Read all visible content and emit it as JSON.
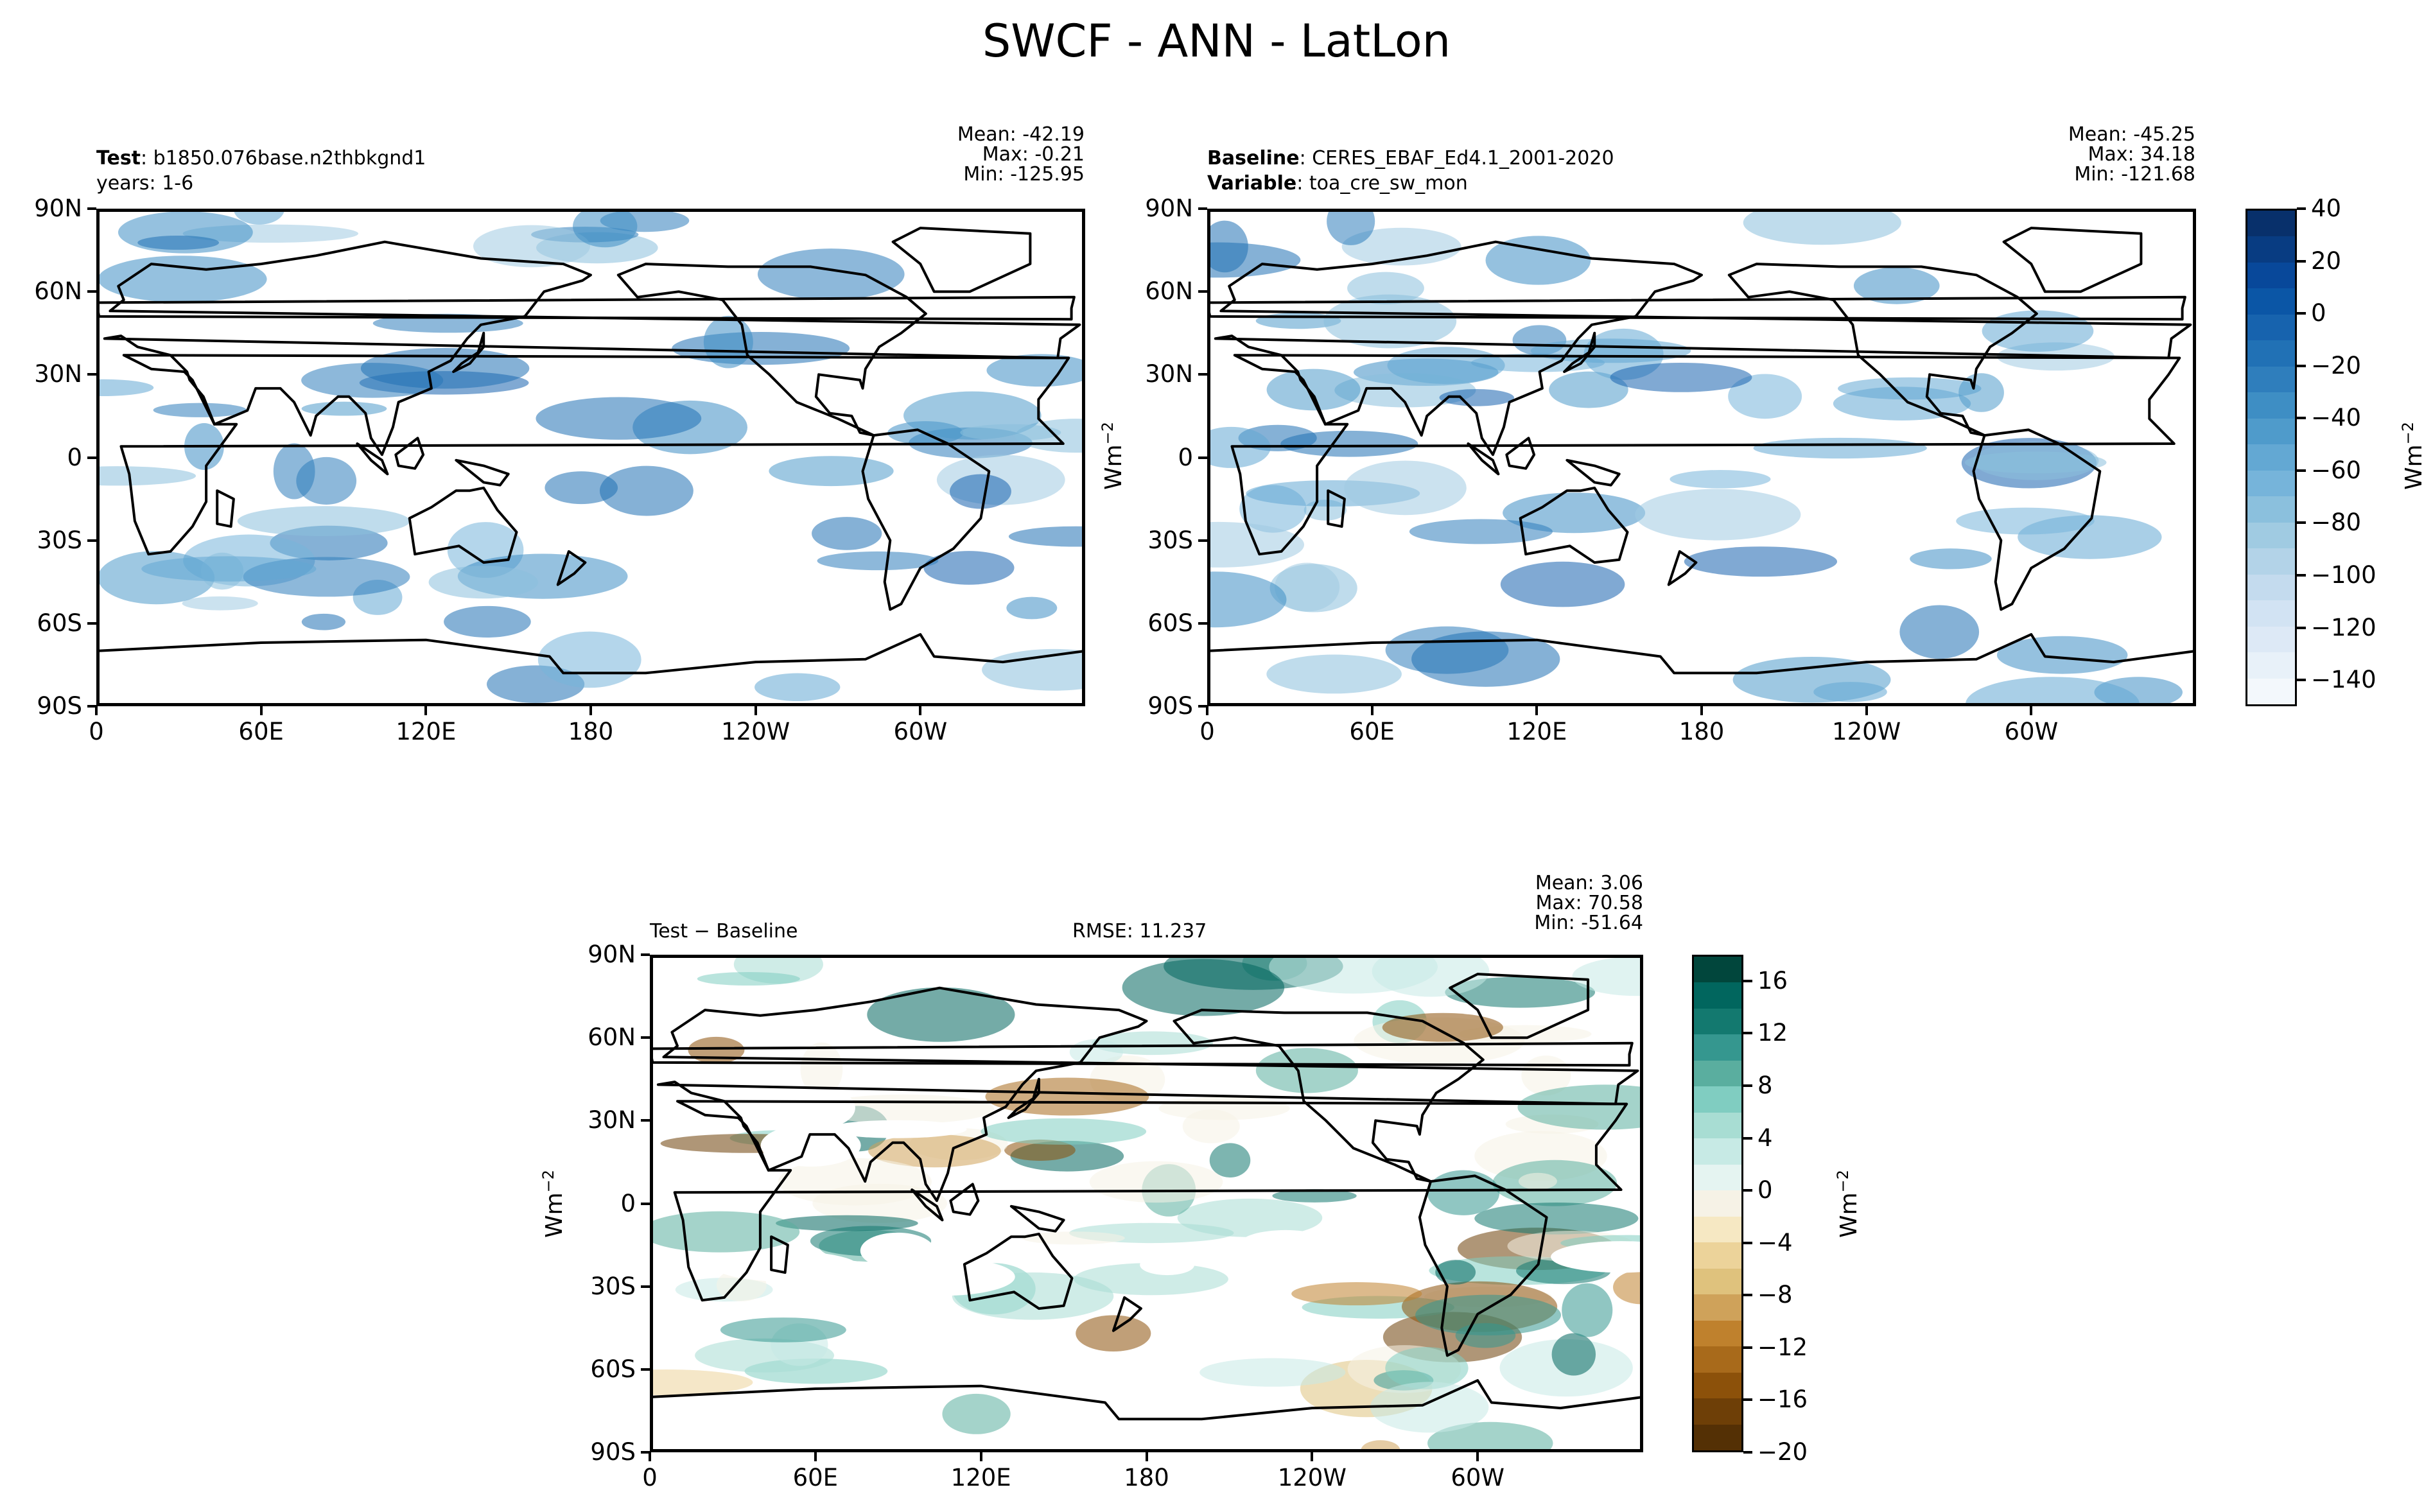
{
  "figure": {
    "title": "SWCF - ANN - LatLon"
  },
  "panels": {
    "test": {
      "label_bold": "Test",
      "label_rest": ": b1850.076base.n2thbkgnd1",
      "sublabel": "years: 1-6",
      "stats": [
        "Mean: -42.19",
        "Max: -0.21",
        "Min: -125.95"
      ]
    },
    "baseline": {
      "label_bold": "Baseline",
      "label_rest": ": CERES_EBAF_Ed4.1_2001-2020",
      "label2_bold": "Variable",
      "label2_rest": ": toa_cre_sw_mon",
      "stats": [
        "Mean: -45.25",
        "Max: 34.18",
        "Min: -121.68"
      ]
    },
    "diff": {
      "label_bold": "Test − Baseline",
      "rmse": "RMSE: 11.237",
      "stats": [
        "Mean:  3.06",
        "Max: 70.58",
        "Min: -51.64"
      ]
    }
  },
  "axes": {
    "lat_ticks": [
      "90N",
      "60N",
      "30N",
      "0",
      "30S",
      "60S",
      "90S"
    ],
    "lon_ticks": [
      "0",
      "60E",
      "120E",
      "180",
      "120W",
      "60W"
    ]
  },
  "units": {
    "base": "Wm",
    "exp": "−2"
  },
  "colorbars": {
    "main": {
      "tick_labels": [
        "40",
        "20",
        "0",
        "−20",
        "−40",
        "−60",
        "−80",
        "−100",
        "−120",
        "−140"
      ],
      "levels": [
        40,
        30,
        20,
        10,
        0,
        -10,
        -20,
        -30,
        -40,
        -50,
        -60,
        -70,
        -80,
        -90,
        -100,
        -110,
        -120,
        -130,
        -140,
        -150
      ],
      "colors": [
        "#08306b",
        "#083c82",
        "#08489a",
        "#0b56a6",
        "#1763ae",
        "#2171b5",
        "#2f7ebc",
        "#3e8ec4",
        "#4f9bcb",
        "#63a8d3",
        "#76b4da",
        "#8bc0dd",
        "#a0cbe2",
        "#b3d3e8",
        "#c4dbee",
        "#d2e3f3",
        "#dde9f6",
        "#e8f1f9",
        "#f3f8fc"
      ]
    },
    "diff": {
      "tick_labels": [
        "16",
        "12",
        "8",
        "4",
        "0",
        "−4",
        "−8",
        "−12",
        "−16",
        "−20"
      ],
      "levels": [
        18,
        16,
        14,
        12,
        10,
        8,
        6,
        4,
        2,
        0,
        -2,
        -4,
        -6,
        -8,
        -10,
        -12,
        -14,
        -16,
        -18,
        -20
      ],
      "colors": [
        "#01463c",
        "#01665e",
        "#13796f",
        "#35978f",
        "#5aae9f",
        "#80cdc1",
        "#a8ddd3",
        "#c7eae5",
        "#e5f4f1",
        "#f6f2e6",
        "#f6e8c3",
        "#ecd39a",
        "#dfc27d",
        "#cfa25a",
        "#bf812d",
        "#a86a1b",
        "#8c510a",
        "#6e3f07",
        "#543005"
      ]
    }
  },
  "chart_data": [
    {
      "type": "heatmap",
      "title": "SWCF - ANN - LatLon",
      "panel": "Test: b1850.076base.n2thbkgnd1 (years: 1-6)",
      "xlabel": "",
      "ylabel": "",
      "x_ticks": [
        "0",
        "60E",
        "120E",
        "180",
        "120W",
        "60W"
      ],
      "y_ticks": [
        "90N",
        "60N",
        "30N",
        "0",
        "30S",
        "60S",
        "90S"
      ],
      "colorbar_range": [
        -150,
        40
      ],
      "stats": {
        "mean": -42.19,
        "max": -0.21,
        "min": -125.95
      }
    },
    {
      "type": "heatmap",
      "panel": "Baseline: CERES_EBAF_Ed4.1_2001-2020, Variable: toa_cre_sw_mon",
      "xlabel": "",
      "ylabel": "",
      "x_ticks": [
        "0",
        "60E",
        "120E",
        "180",
        "120W",
        "60W"
      ],
      "y_ticks": [
        "90N",
        "60N",
        "30N",
        "0",
        "30S",
        "60S",
        "90S"
      ],
      "colorbar_range": [
        -150,
        40
      ],
      "stats": {
        "mean": -45.25,
        "max": 34.18,
        "min": -121.68
      }
    },
    {
      "type": "heatmap",
      "panel": "Test − Baseline",
      "xlabel": "",
      "ylabel": "",
      "x_ticks": [
        "0",
        "60E",
        "120E",
        "180",
        "120W",
        "60W"
      ],
      "y_ticks": [
        "90N",
        "60N",
        "30N",
        "0",
        "30S",
        "60S",
        "90S"
      ],
      "colorbar_range": [
        -20,
        18
      ],
      "stats": {
        "mean": 3.06,
        "max": 70.58,
        "min": -51.64,
        "rmse": 11.237
      }
    }
  ]
}
